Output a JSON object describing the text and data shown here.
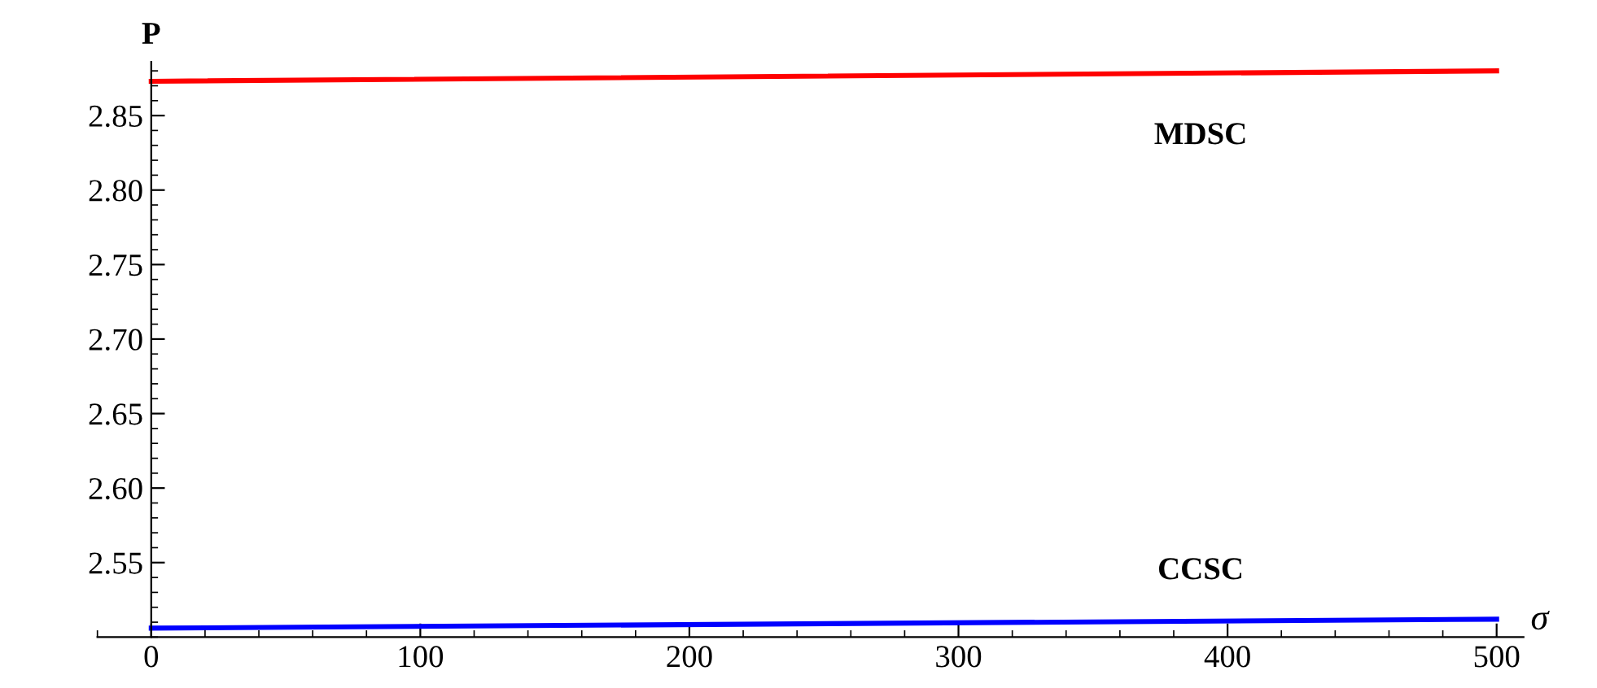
{
  "chart_data": {
    "type": "line",
    "xlabel": "σ",
    "ylabel": "P",
    "x": [
      0,
      500
    ],
    "series": [
      {
        "name": "MDSC",
        "color": "#ff0000",
        "values": [
          2.873,
          2.88
        ]
      },
      {
        "name": "CCSC",
        "color": "#0000ff",
        "values": [
          2.506,
          2.512
        ]
      }
    ],
    "xlim": [
      -20,
      510
    ],
    "ylim": [
      2.5,
      2.886
    ],
    "xticks": [
      0,
      100,
      200,
      300,
      400,
      500
    ],
    "yticks": [
      {
        "value": 2.55,
        "label": "2.55"
      },
      {
        "value": 2.6,
        "label": "2.60"
      },
      {
        "value": 2.65,
        "label": "2.65"
      },
      {
        "value": 2.7,
        "label": "2.70"
      },
      {
        "value": 2.75,
        "label": "2.75"
      },
      {
        "value": 2.8,
        "label": "2.80"
      },
      {
        "value": 2.85,
        "label": "2.85"
      }
    ],
    "grid": false,
    "legend": false,
    "line_style": "solid",
    "marker": "none"
  }
}
